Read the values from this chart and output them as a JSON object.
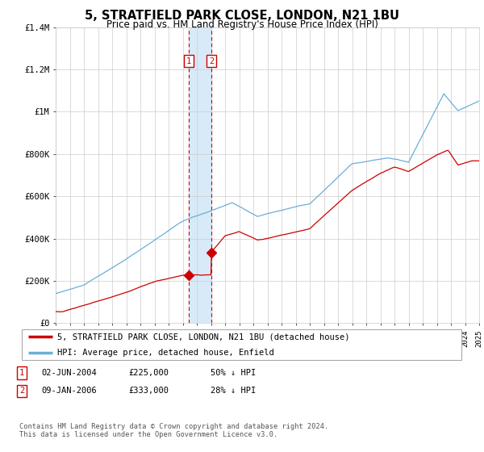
{
  "title1": "5, STRATFIELD PARK CLOSE, LONDON, N21 1BU",
  "title2": "Price paid vs. HM Land Registry's House Price Index (HPI)",
  "ylim": [
    0,
    1400000
  ],
  "yticks": [
    0,
    200000,
    400000,
    600000,
    800000,
    1000000,
    1200000,
    1400000
  ],
  "ytick_labels": [
    "£0",
    "£200K",
    "£400K",
    "£600K",
    "£800K",
    "£1M",
    "£1.2M",
    "£1.4M"
  ],
  "x_start_year": 1995,
  "x_end_year": 2025,
  "sale1_date": 2004.42,
  "sale1_price": 225000,
  "sale1_label": "1",
  "sale2_date": 2006.03,
  "sale2_price": 333000,
  "sale2_label": "2",
  "sale1_row": "02-JUN-2004",
  "sale1_price_str": "£225,000",
  "sale1_hpi": "50% ↓ HPI",
  "sale2_row": "09-JAN-2006",
  "sale2_price_str": "£333,000",
  "sale2_hpi": "28% ↓ HPI",
  "legend1_label": "5, STRATFIELD PARK CLOSE, LONDON, N21 1BU (detached house)",
  "legend2_label": "HPI: Average price, detached house, Enfield",
  "footer": "Contains HM Land Registry data © Crown copyright and database right 2024.\nThis data is licensed under the Open Government Licence v3.0.",
  "line_color_hpi": "#6baed6",
  "line_color_price": "#cc0000",
  "shade_color": "#d8eaf8",
  "grid_color": "#cccccc",
  "bg_color": "#ffffff"
}
